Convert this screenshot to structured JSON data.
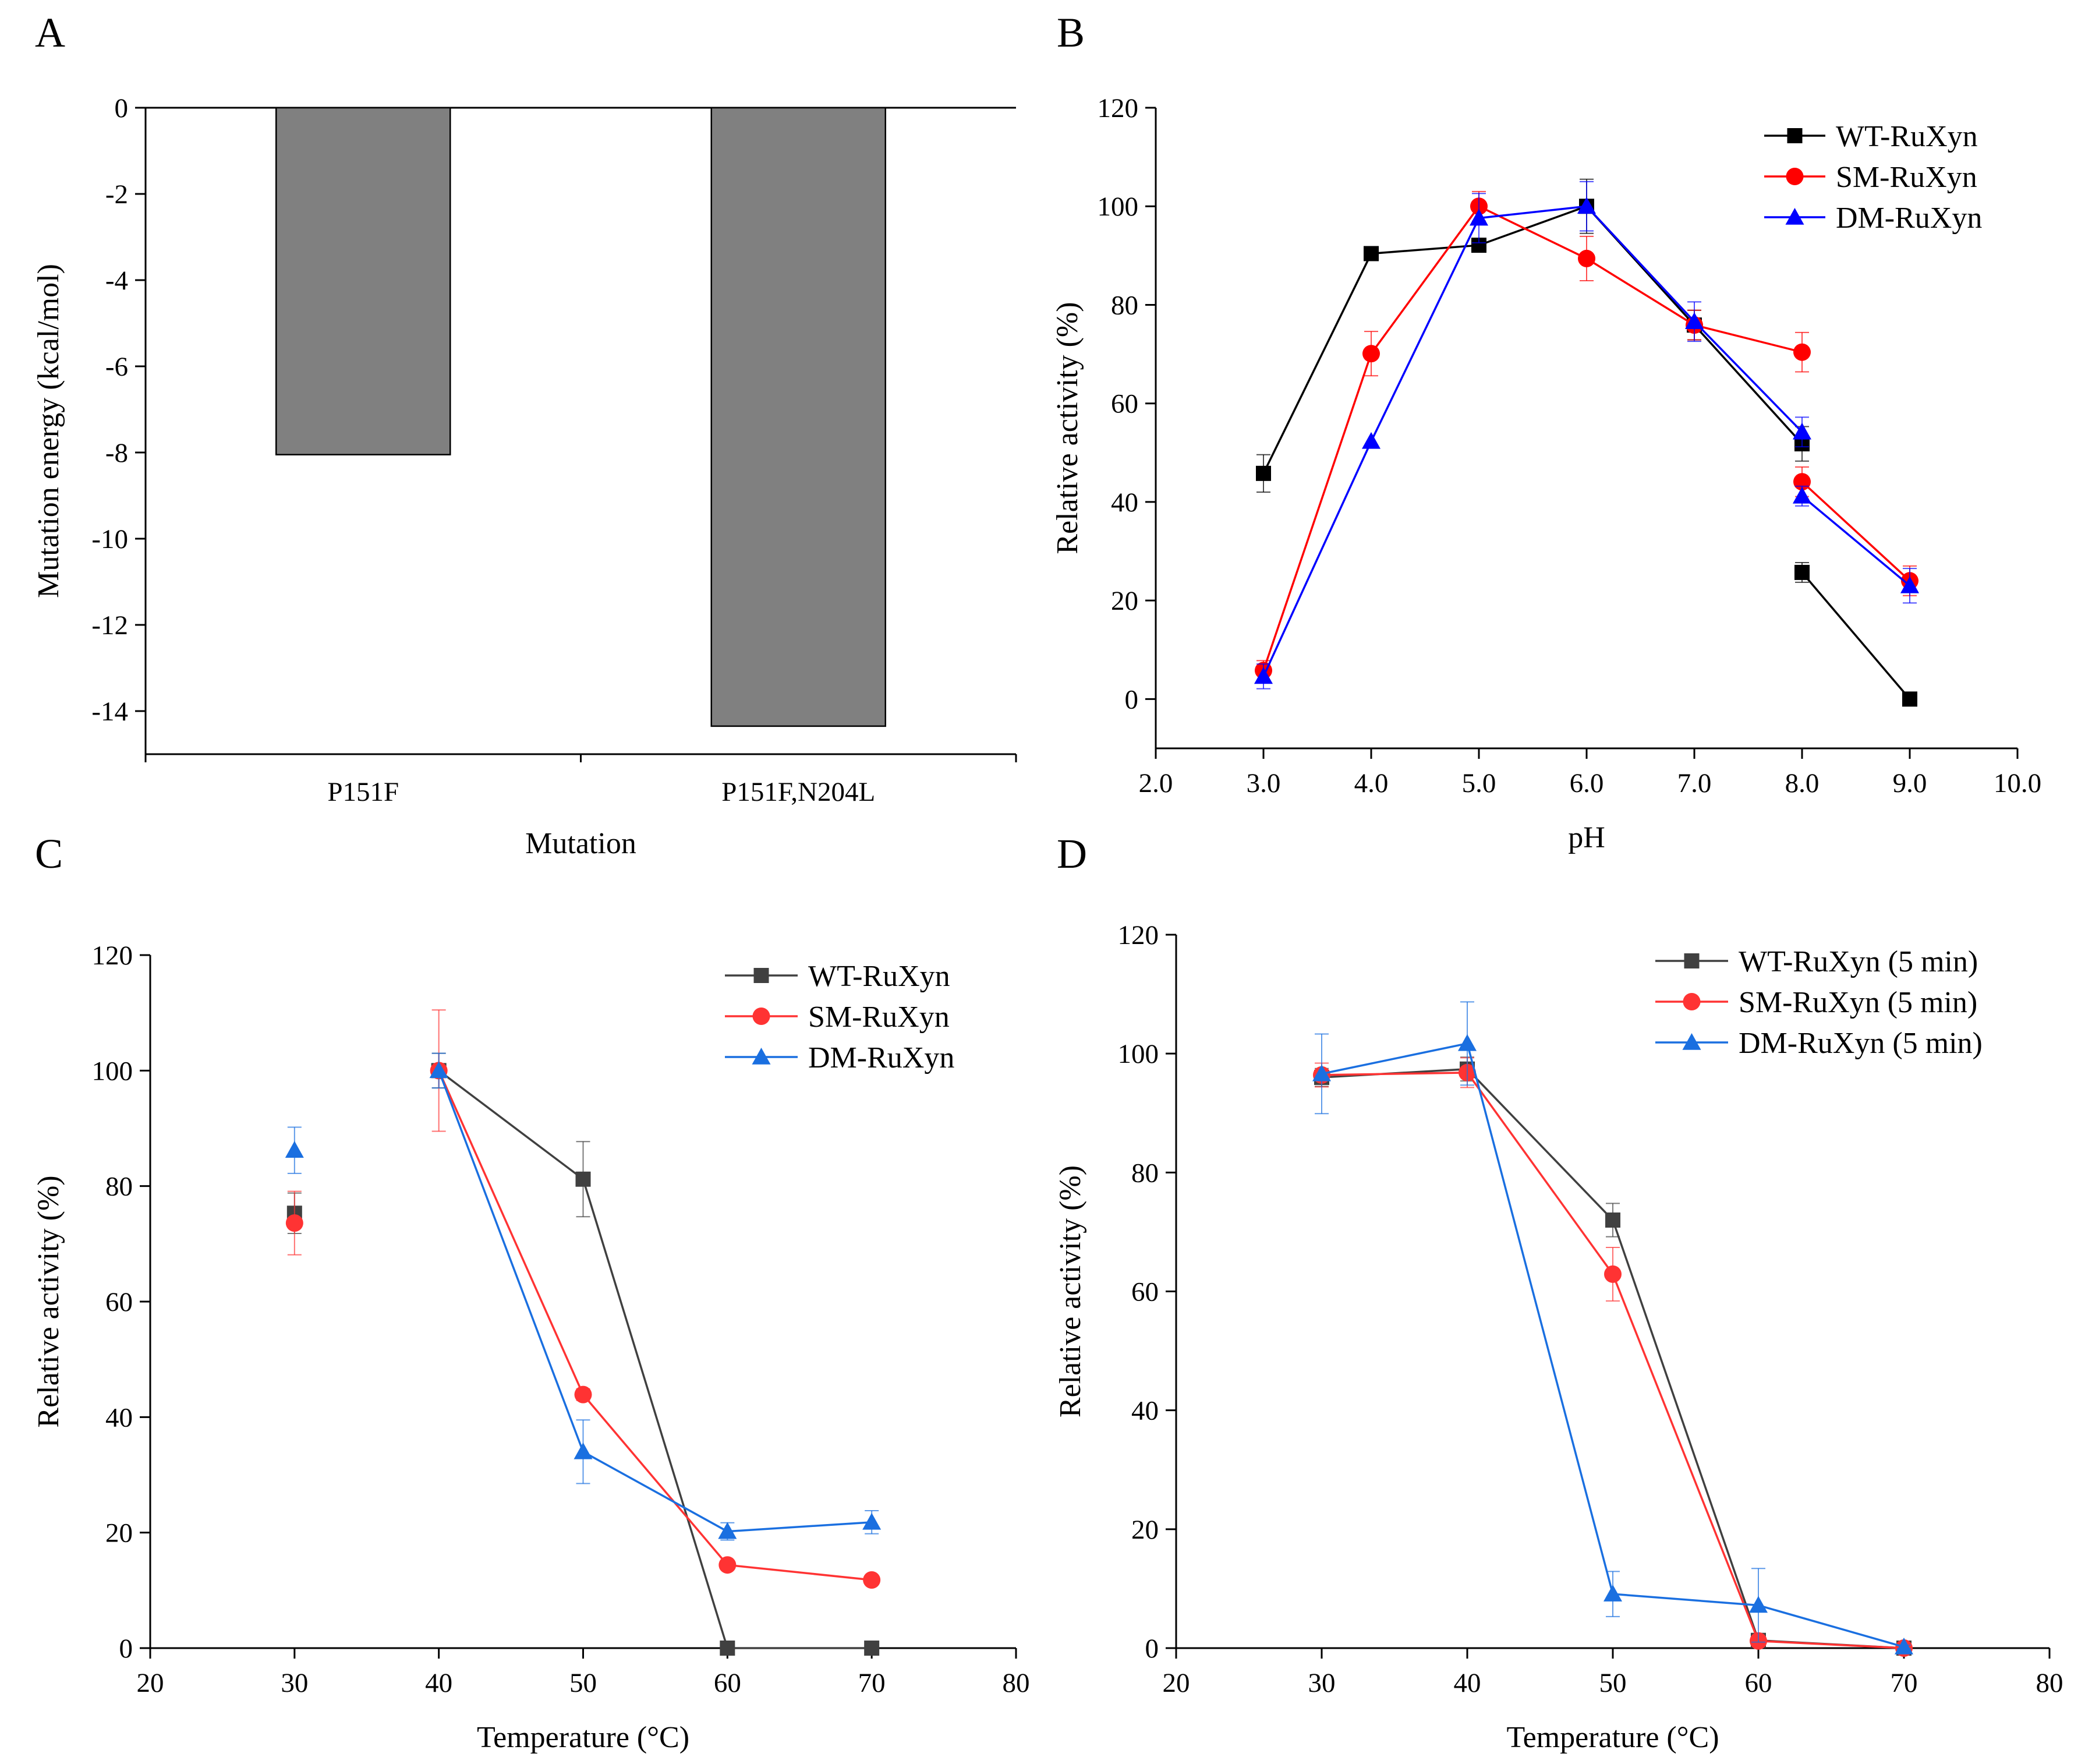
{
  "figure": {
    "panels": [
      "A",
      "B",
      "C",
      "D"
    ]
  },
  "chart_data": [
    {
      "panel": "A",
      "type": "bar",
      "title": "",
      "xlabel": "Mutation",
      "ylabel": "Mutation energy (kcal/mol)",
      "categories": [
        "P151F",
        "P151F,N204L"
      ],
      "values": [
        -8.05,
        -14.35
      ],
      "ylim": [
        -15,
        0
      ],
      "yticks": [
        0,
        -2,
        -4,
        -6,
        -8,
        -10,
        -12,
        -14
      ],
      "ytick_labels": [
        "0",
        "-2",
        "-4",
        "-6",
        "-8",
        "-10",
        "-12",
        "-14"
      ],
      "bar_color": "#808080",
      "legend": null
    },
    {
      "panel": "B",
      "type": "line",
      "xlabel": "pH",
      "ylabel": "Relative activity (%)",
      "xlim": [
        2.0,
        10.0
      ],
      "ylim": [
        -10,
        120
      ],
      "xticks": [
        2,
        3,
        4,
        5,
        6,
        7,
        8,
        9,
        10
      ],
      "xtick_labels": [
        "2.0",
        "3.0",
        "4.0",
        "5.0",
        "6.0",
        "7.0",
        "8.0",
        "9.0",
        "10.0"
      ],
      "yticks": [
        0,
        20,
        40,
        60,
        80,
        100,
        120
      ],
      "ytick_labels": [
        "0",
        "20",
        "40",
        "60",
        "80",
        "100",
        "120"
      ],
      "legend_position": "top-right",
      "series": [
        {
          "name": "WT-RuXyn",
          "color": "#000000",
          "marker": "square",
          "segments": [
            {
              "points": [
                [
                  3,
                  45.8
                ],
                [
                  4,
                  90.4
                ],
                [
                  5,
                  92.1
                ],
                [
                  6,
                  100
                ],
                [
                  7,
                  75.9
                ],
                [
                  8,
                  51.8
                ]
              ]
            },
            {
              "points": [
                [
                  8,
                  25.7
                ],
                [
                  9,
                  0
                ]
              ]
            }
          ],
          "errors": [
            3.8,
            0,
            0,
            5.5,
            3.0,
            3.5,
            2.0,
            0
          ]
        },
        {
          "name": "SM-RuXyn",
          "color": "#ff0000",
          "marker": "circle",
          "segments": [
            {
              "points": [
                [
                  3,
                  5.8
                ],
                [
                  4,
                  70.1
                ],
                [
                  5,
                  100
                ],
                [
                  6,
                  89.4
                ],
                [
                  7,
                  75.9
                ],
                [
                  8,
                  70.4
                ]
              ]
            },
            {
              "points": [
                [
                  8,
                  44.1
                ],
                [
                  9,
                  24.0
                ]
              ]
            }
          ],
          "errors": [
            2.0,
            4.5,
            3.0,
            4.5,
            3.0,
            4.0,
            3.0,
            3.0
          ]
        },
        {
          "name": "DM-RuXyn",
          "color": "#0000ff",
          "marker": "triangle",
          "segments": [
            {
              "points": [
                [
                  3,
                  4.6
                ],
                [
                  4,
                  52.3
                ],
                [
                  5,
                  97.6
                ],
                [
                  6,
                  100
                ],
                [
                  7,
                  76.6
                ],
                [
                  8,
                  54.2
                ]
              ]
            },
            {
              "points": [
                [
                  8,
                  41.2
                ],
                [
                  9,
                  23.0
                ]
              ]
            }
          ],
          "errors": [
            2.5,
            0,
            5.0,
            5.0,
            4.0,
            3.0,
            2.0,
            3.5
          ]
        }
      ]
    },
    {
      "panel": "C",
      "type": "line",
      "xlabel": "Temperature (°C)",
      "ylabel": "Relative activity (%)",
      "xlim": [
        20,
        80
      ],
      "ylim": [
        0,
        120
      ],
      "xticks": [
        20,
        30,
        40,
        50,
        60,
        70,
        80
      ],
      "xtick_labels": [
        "20",
        "30",
        "40",
        "50",
        "60",
        "70",
        "80"
      ],
      "yticks": [
        0,
        20,
        40,
        60,
        80,
        100,
        120
      ],
      "ytick_labels": [
        "0",
        "20",
        "40",
        "60",
        "80",
        "100",
        "120"
      ],
      "legend_position": "top-right",
      "series": [
        {
          "name": "WT-RuXyn",
          "color": "#404040",
          "marker": "square",
          "segments": [
            {
              "points": [
                [
                  30,
                  75.3
                ],
                [
                  40,
                  100
                ],
                [
                  50,
                  81.2
                ],
                [
                  60,
                  0
                ],
                [
                  70,
                  0
                ]
              ],
              "connect_from": 1
            }
          ],
          "errors": [
            3.5,
            3.0,
            6.5,
            0,
            0
          ]
        },
        {
          "name": "SM-RuXyn",
          "color": "#ff3333",
          "marker": "circle",
          "segments": [
            {
              "points": [
                [
                  30,
                  73.6
                ],
                [
                  40,
                  100
                ],
                [
                  50,
                  43.9
                ],
                [
                  60,
                  14.4
                ],
                [
                  70,
                  11.8
                ]
              ],
              "connect_from": 1
            }
          ],
          "errors": [
            5.5,
            10.5,
            1.0,
            0.5,
            0.5
          ]
        },
        {
          "name": "DM-RuXyn",
          "color": "#1a6fe0",
          "marker": "triangle",
          "segments": [
            {
              "points": [
                [
                  30,
                  86.2
                ],
                [
                  40,
                  100
                ],
                [
                  50,
                  34.0
                ],
                [
                  60,
                  20.2
                ],
                [
                  70,
                  21.8
                ]
              ],
              "connect_from": 1
            }
          ],
          "errors": [
            4.0,
            3.0,
            5.5,
            1.5,
            2.0
          ]
        }
      ]
    },
    {
      "panel": "D",
      "type": "line",
      "xlabel": "Temperature (°C)",
      "ylabel": "Relative activity (%)",
      "xlim": [
        20,
        80
      ],
      "ylim": [
        0,
        120
      ],
      "xticks": [
        20,
        30,
        40,
        50,
        60,
        70,
        80
      ],
      "xtick_labels": [
        "20",
        "30",
        "40",
        "50",
        "60",
        "70",
        "80"
      ],
      "yticks": [
        0,
        20,
        40,
        60,
        80,
        100,
        120
      ],
      "ytick_labels": [
        "0",
        "20",
        "40",
        "60",
        "80",
        "100",
        "120"
      ],
      "legend_position": "top-right",
      "series": [
        {
          "name": "WT-RuXyn (5 min)",
          "color": "#404040",
          "marker": "square",
          "segments": [
            {
              "points": [
                [
                  30,
                  96.0
                ],
                [
                  40,
                  97.4
                ],
                [
                  50,
                  72.0
                ],
                [
                  60,
                  1.3
                ],
                [
                  70,
                  0
                ]
              ]
            }
          ],
          "errors": [
            1.5,
            2.0,
            2.8,
            0.5,
            0
          ]
        },
        {
          "name": "SM-RuXyn (5 min)",
          "color": "#ff3333",
          "marker": "circle",
          "segments": [
            {
              "points": [
                [
                  30,
                  96.4
                ],
                [
                  40,
                  96.8
                ],
                [
                  50,
                  62.9
                ],
                [
                  60,
                  1.2
                ],
                [
                  70,
                  0
                ]
              ]
            }
          ],
          "errors": [
            2.0,
            2.5,
            4.5,
            0.5,
            0
          ]
        },
        {
          "name": "DM-RuXyn (5 min)",
          "color": "#1a6fe0",
          "marker": "triangle",
          "segments": [
            {
              "points": [
                [
                  30,
                  96.6
                ],
                [
                  40,
                  101.7
                ],
                [
                  50,
                  9.1
                ],
                [
                  60,
                  7.2
                ],
                [
                  70,
                  0.2
                ]
              ]
            }
          ],
          "errors": [
            6.7,
            7.0,
            3.8,
            6.2,
            0.3
          ]
        }
      ]
    }
  ]
}
